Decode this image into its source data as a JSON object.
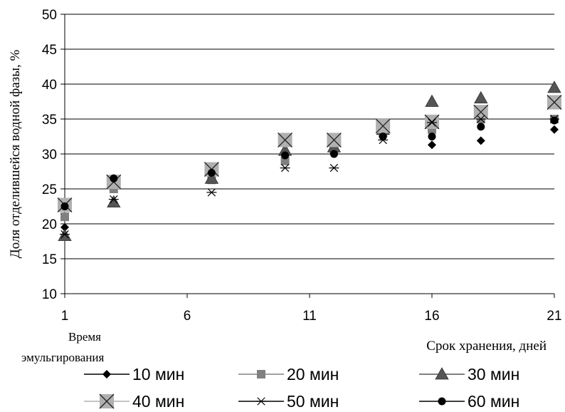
{
  "chart_data": {
    "type": "scatter",
    "ylabel": "Доля отделившейся водной фазы, %",
    "xlabel": "Срок хранения, дней",
    "legend_title": "Время эмульгирования",
    "legend_title_lines": [
      "Время",
      "эмульгирования"
    ],
    "xlim": [
      1,
      21
    ],
    "ylim": [
      10,
      50
    ],
    "x_ticks": [
      1,
      6,
      11,
      16,
      21
    ],
    "y_ticks": [
      10,
      15,
      20,
      25,
      30,
      35,
      40,
      45,
      50
    ],
    "grid": "horizontal",
    "legend_position": "bottom",
    "series": [
      {
        "name": "10 мин",
        "marker": "diamond",
        "color": "#000000",
        "points": [
          [
            1,
            19.5
          ],
          [
            3,
            26.5
          ],
          [
            7,
            27
          ],
          [
            10,
            30
          ],
          [
            12,
            30.5
          ],
          [
            14,
            32.5
          ],
          [
            16,
            31.3
          ],
          [
            18,
            31.9
          ],
          [
            21,
            33.5
          ]
        ]
      },
      {
        "name": "20 мин",
        "marker": "square",
        "color": "#808080",
        "points": [
          [
            1,
            21
          ],
          [
            3,
            25
          ],
          [
            7,
            26.3
          ],
          [
            10,
            29
          ],
          [
            12,
            30.5
          ],
          [
            14,
            33
          ],
          [
            16,
            33.5
          ],
          [
            18,
            35
          ],
          [
            21,
            35
          ]
        ]
      },
      {
        "name": "30 мин",
        "marker": "triangle",
        "color": "#555555",
        "points": [
          [
            1,
            18.3
          ],
          [
            3,
            23.1
          ],
          [
            7,
            26.5
          ],
          [
            10,
            30.5
          ],
          [
            12,
            31
          ],
          [
            14,
            33.5
          ],
          [
            16,
            37.5
          ],
          [
            18,
            38
          ],
          [
            21,
            39.5
          ]
        ]
      },
      {
        "name": "40 мин",
        "marker": "boxx",
        "color": "#b0b0b0",
        "points": [
          [
            1,
            22.7
          ],
          [
            3,
            26
          ],
          [
            7,
            27.8
          ],
          [
            10,
            32
          ],
          [
            12,
            32
          ],
          [
            14,
            34
          ],
          [
            16,
            34.6
          ],
          [
            18,
            36
          ],
          [
            21,
            37.4
          ]
        ]
      },
      {
        "name": "50 мин",
        "marker": "star",
        "color": "#000000",
        "points": [
          [
            1,
            18.5
          ],
          [
            3,
            23.5
          ],
          [
            7,
            24.5
          ],
          [
            10,
            28
          ],
          [
            12,
            28
          ],
          [
            14,
            32
          ],
          [
            16,
            34.5
          ],
          [
            18,
            35
          ],
          [
            21,
            35
          ]
        ]
      },
      {
        "name": "60 мин",
        "marker": "circle",
        "color": "#000000",
        "points": [
          [
            1,
            22.5
          ],
          [
            3,
            26.5
          ],
          [
            7,
            27.3
          ],
          [
            10,
            29.8
          ],
          [
            12,
            30
          ],
          [
            14,
            32.5
          ],
          [
            16,
            32.5
          ],
          [
            18,
            33.9
          ],
          [
            21,
            34.8
          ]
        ]
      }
    ]
  }
}
